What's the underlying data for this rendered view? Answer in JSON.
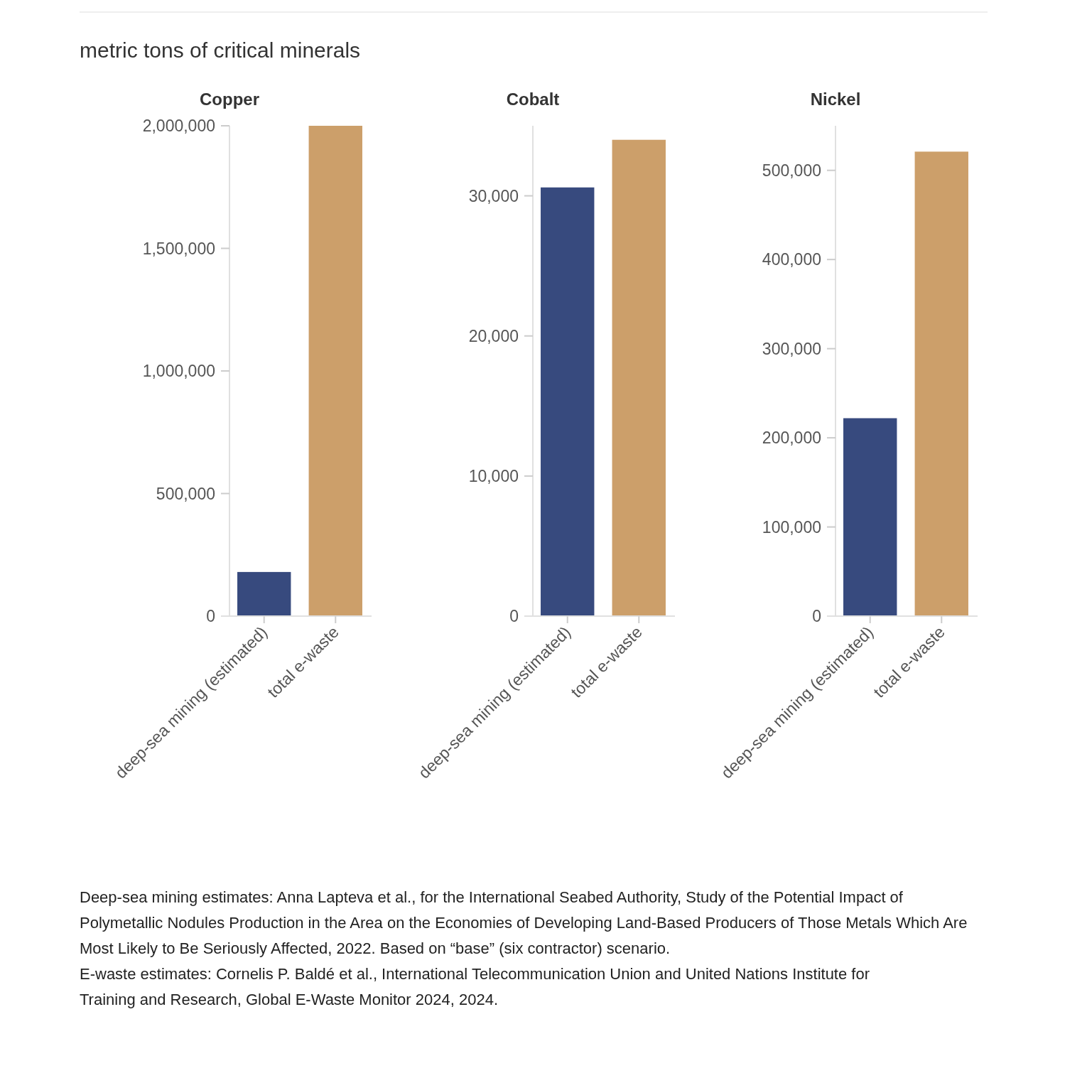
{
  "chart_data": [
    {
      "type": "bar",
      "title": "Copper",
      "ylabel": "metric tons of critical minerals",
      "categories": [
        "deep-sea mining (estimated)",
        "total e-waste"
      ],
      "values": [
        180000,
        2000000
      ],
      "colors": [
        "#374a7e",
        "#cc9f6a"
      ],
      "ylim": [
        0,
        2000000
      ],
      "yticks": [
        {
          "value": 0,
          "label": "0"
        },
        {
          "value": 500000,
          "label": "500,000"
        },
        {
          "value": 1000000,
          "label": "1,000,000"
        },
        {
          "value": 1500000,
          "label": "1,500,000"
        },
        {
          "value": 2000000,
          "label": "2,000,000"
        }
      ],
      "annotations": [
        "Deep-sea mining estimates: Anna Lapteva et al., for the International Seabed Authority, Study of the Potential Impact of Polymetallic Nodules Production in the Area on the Economies of Developing Land-Based Producers of Those Metals Which Are Most Likely to Be Seriously Affected, 2022. Based on “base” (six contractor) scenario.",
        "E-waste estimates: Cornelis P. Baldé et al., International Telecommunication Union and United Nations Institute for Training and Research, Global E-Waste Monitor 2024, 2024."
      ]
    },
    {
      "type": "bar",
      "title": "Cobalt",
      "categories": [
        "deep-sea mining (estimated)",
        "total e-waste"
      ],
      "values": [
        30600,
        34000
      ],
      "colors": [
        "#374a7e",
        "#cc9f6a"
      ],
      "ylim": [
        0,
        35000
      ],
      "yticks": [
        {
          "value": 0,
          "label": "0"
        },
        {
          "value": 10000,
          "label": "10,000"
        },
        {
          "value": 20000,
          "label": "20,000"
        },
        {
          "value": 30000,
          "label": "30,000"
        }
      ]
    },
    {
      "type": "bar",
      "title": "Nickel",
      "categories": [
        "deep-sea mining (estimated)",
        "total e-waste"
      ],
      "values": [
        222000,
        521000
      ],
      "colors": [
        "#374a7e",
        "#cc9f6a"
      ],
      "ylim": [
        0,
        550000
      ],
      "yticks": [
        {
          "value": 0,
          "label": "0"
        },
        {
          "value": 100000,
          "label": "100,000"
        },
        {
          "value": 200000,
          "label": "200,000"
        },
        {
          "value": 300000,
          "label": "300,000"
        },
        {
          "value": 400000,
          "label": "400,000"
        },
        {
          "value": 500000,
          "label": "500,000"
        }
      ]
    }
  ]
}
